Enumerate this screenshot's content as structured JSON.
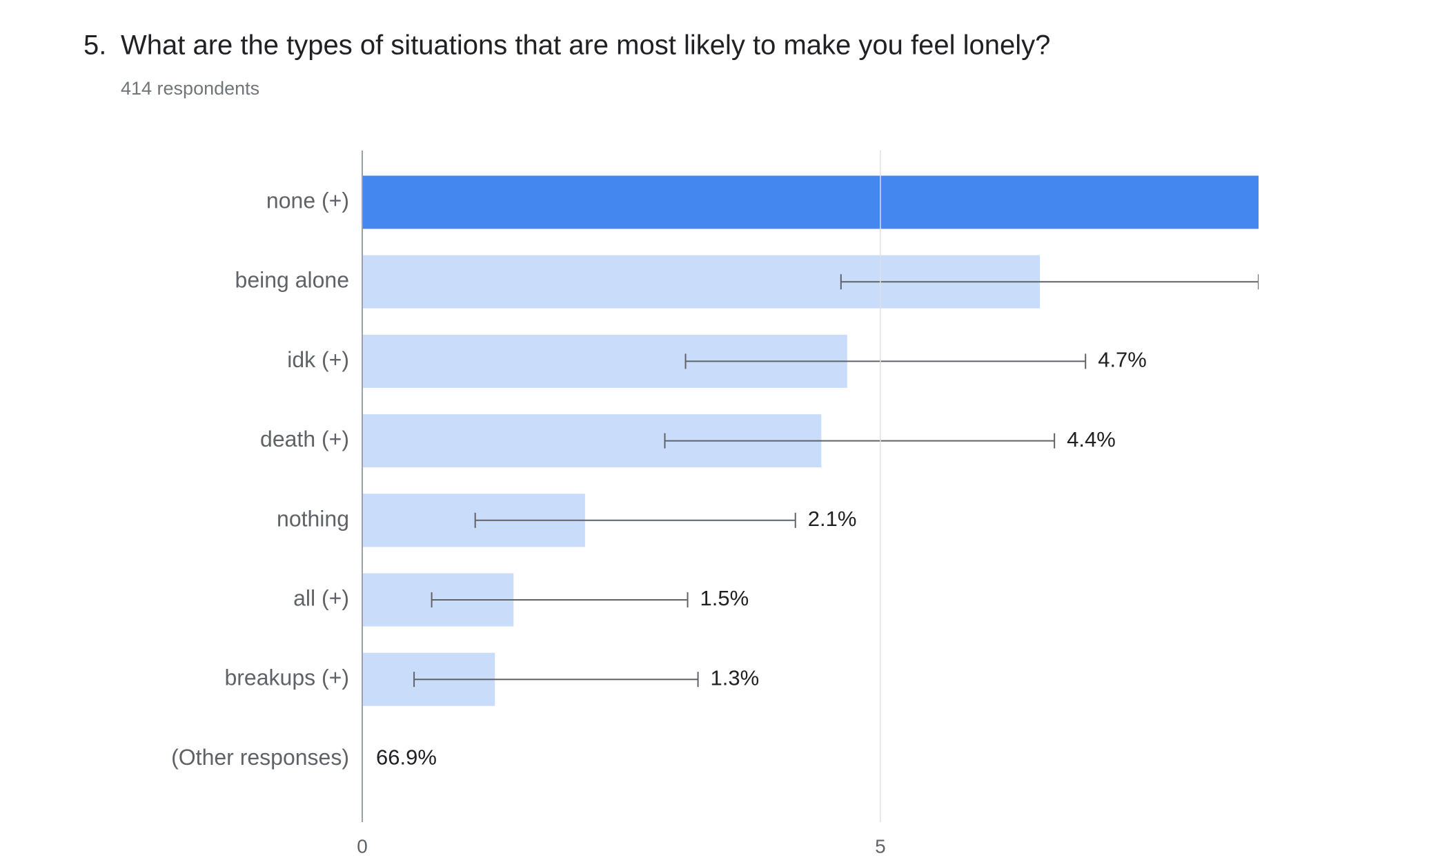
{
  "chart_data": {
    "type": "bar",
    "orientation": "horizontal",
    "number": "5.",
    "title": "What are the types of situations that are most likely to make you feel lonely?",
    "subtitle": "414 respondents",
    "categories": [
      "none (+)",
      "being alone",
      "idk (+)",
      "death (+)",
      "nothing",
      "all (+)",
      "breakups (+)",
      "(Other responses)"
    ],
    "values": [
      8.65,
      6.54,
      4.68,
      4.43,
      2.15,
      1.46,
      1.28,
      66.9
    ],
    "value_labels": [
      null,
      null,
      "4.7%",
      "4.4%",
      "2.1%",
      "1.5%",
      "1.3%",
      "66.9%"
    ],
    "ci_low": [
      null,
      4.62,
      3.12,
      2.92,
      1.09,
      0.67,
      0.5,
      null
    ],
    "ci_high": [
      null,
      8.65,
      6.98,
      6.68,
      4.18,
      3.14,
      3.24,
      null
    ],
    "colors": [
      "#4487ee",
      "#c9dcfa",
      "#c9dcfa",
      "#c9dcfa",
      "#c9dcfa",
      "#c9dcfa",
      "#c9dcfa",
      "#c9dcfa"
    ],
    "xlim": [
      0,
      8.65
    ],
    "xticks": [
      0,
      5
    ],
    "grid": true
  }
}
